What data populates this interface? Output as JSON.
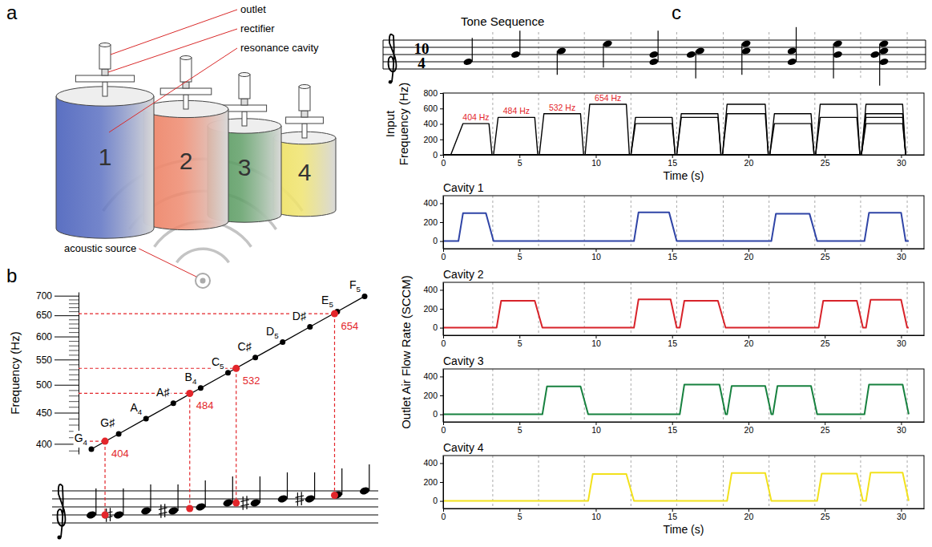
{
  "diagram": {
    "panel_label": "a",
    "labels": {
      "outlet": "outlet",
      "rectifier": "rectifier",
      "cavity": "resonance cavity",
      "source": "acoustic source"
    },
    "cavities": [
      {
        "label": "1",
        "color": "#5b70c2"
      },
      {
        "label": "2",
        "color": "#ee8a6f"
      },
      {
        "label": "3",
        "color": "#5f9e66"
      },
      {
        "label": "4",
        "color": "#efe36e"
      }
    ]
  },
  "tone_sequence": {
    "panel_label": "c",
    "title": "Tone Sequence",
    "time_signature": [
      "10",
      "4"
    ],
    "chords": [
      [
        "G4"
      ],
      [
        "B4"
      ],
      [
        "C5"
      ],
      [
        "E5"
      ],
      [
        "G4",
        "B4"
      ],
      [
        "B4",
        "C5"
      ],
      [
        "C5",
        "E5"
      ],
      [
        "G4",
        "C5"
      ],
      [
        "B4",
        "E5"
      ],
      [
        "G4",
        "B4",
        "C5",
        "E5"
      ]
    ],
    "boundaries": [
      3.25,
      6.25,
      9.25,
      12.3,
      15.3,
      18.35,
      21.35,
      24.35,
      27.35,
      30.4
    ],
    "flow_ylabel": "Outlet Air Flow Rate (SCCM)"
  },
  "chart_data": [
    {
      "type": "line",
      "panel_label": "b",
      "ylabel": "Frequency (Hz)",
      "log": "y",
      "tick_labels": "y",
      "xlim": [
        0,
        10
      ],
      "ylim": [
        385,
        710
      ],
      "yticks": [
        400,
        450,
        500,
        550,
        600,
        650,
        700
      ],
      "minor_yticks": [
        390,
        410,
        420,
        430,
        440,
        460,
        470,
        480,
        490,
        510,
        520,
        530,
        540,
        560,
        570,
        580,
        590,
        610,
        620,
        630,
        640,
        660,
        670,
        680,
        690
      ],
      "series": [
        {
          "color": "#000000",
          "marker": "circle",
          "x": [
            0,
            1,
            2,
            3,
            4,
            5,
            6,
            7,
            8,
            9,
            10
          ],
          "values": [
            392,
            415.3,
            440,
            466.2,
            493.9,
            523.3,
            554.4,
            587.3,
            622.3,
            659.3,
            698.5
          ],
          "point_labels": [
            "G4",
            "G♯",
            "A4",
            "A♯",
            "B4",
            "C5",
            "C♯",
            "D5",
            "D♯",
            "E5",
            "F5"
          ]
        },
        {
          "type": "scatter",
          "color": "#e3262b",
          "marker": "circle",
          "line_style": "dashed",
          "data_labels": true,
          "x": [
            0.5,
            3.6,
            5.3,
            8.9
          ],
          "values": [
            404,
            484,
            532,
            654
          ]
        }
      ]
    },
    {
      "type": "line",
      "xlabel": "Time (s)",
      "ylabel": "Input Frequency (Hz)",
      "xlim": [
        0,
        31.5
      ],
      "xticks": [
        0,
        5,
        10,
        15,
        20,
        25,
        30
      ],
      "ylim": [
        0,
        800
      ],
      "yticks": [
        0,
        200,
        400,
        600,
        800
      ],
      "series": [
        {
          "color": "#000000",
          "annotation": "404 Hz",
          "x": [
            0,
            0.5,
            1.3,
            3.0,
            3.2,
            12.3,
            12.6,
            15.0,
            15.2,
            21.4,
            21.7,
            24.1,
            24.3,
            27.4,
            27.7,
            30.1,
            30.3
          ],
          "values": [
            0,
            0,
            404,
            404,
            0,
            0,
            404,
            404,
            0,
            0,
            404,
            404,
            0,
            0,
            404,
            404,
            0
          ]
        },
        {
          "color": "#000000",
          "annotation": "484 Hz",
          "x": [
            0,
            3.3,
            3.6,
            6.0,
            6.2,
            12.3,
            12.6,
            15.0,
            15.2,
            15.3,
            15.6,
            18.0,
            18.2,
            24.4,
            24.7,
            27.1,
            27.3,
            27.4,
            27.7,
            30.1,
            30.3
          ],
          "values": [
            0,
            0,
            484,
            484,
            0,
            0,
            484,
            484,
            0,
            0,
            484,
            484,
            0,
            0,
            484,
            484,
            0,
            0,
            484,
            484,
            0
          ]
        },
        {
          "color": "#000000",
          "annotation": "532 Hz",
          "x": [
            0,
            6.3,
            6.6,
            9.0,
            9.2,
            15.3,
            15.6,
            18.0,
            18.2,
            18.3,
            18.6,
            21.1,
            21.3,
            21.4,
            21.7,
            24.1,
            24.3,
            27.4,
            27.7,
            30.1,
            30.3
          ],
          "values": [
            0,
            0,
            532,
            532,
            0,
            0,
            532,
            532,
            0,
            0,
            532,
            532,
            0,
            0,
            532,
            532,
            0,
            0,
            532,
            532,
            0
          ]
        },
        {
          "color": "#000000",
          "annotation": "654 Hz",
          "x": [
            0,
            9.3,
            9.6,
            12.0,
            12.2,
            18.3,
            18.6,
            21.1,
            21.3,
            24.4,
            24.7,
            27.1,
            27.3,
            27.4,
            27.7,
            30.1,
            30.3
          ],
          "values": [
            0,
            0,
            654,
            654,
            0,
            0,
            654,
            654,
            0,
            0,
            654,
            654,
            0,
            0,
            654,
            654,
            0
          ]
        }
      ]
    },
    {
      "type": "line",
      "title": "Cavity 1",
      "xlim": [
        0,
        31.5
      ],
      "xticks": [
        0,
        5,
        10,
        15,
        20,
        25,
        30
      ],
      "ylim": [
        -80,
        480
      ],
      "yticks": [
        0,
        200,
        400
      ],
      "series": [
        {
          "color": "#2f44a6",
          "x": [
            0,
            1.0,
            1.3,
            2.8,
            3.3,
            12.5,
            12.8,
            14.8,
            15.3,
            21.5,
            21.8,
            24.0,
            24.5,
            27.6,
            27.9,
            30.0,
            30.3,
            30.5
          ],
          "values": [
            0,
            0,
            295,
            295,
            0,
            0,
            305,
            305,
            0,
            0,
            290,
            290,
            0,
            0,
            300,
            300,
            0,
            0
          ]
        }
      ]
    },
    {
      "type": "line",
      "title": "Cavity 2",
      "xlim": [
        0,
        31.5
      ],
      "xticks": [
        0,
        5,
        10,
        15,
        20,
        25,
        30
      ],
      "ylim": [
        -80,
        480
      ],
      "yticks": [
        0,
        200,
        400
      ],
      "series": [
        {
          "color": "#d8232a",
          "x": [
            0,
            3.5,
            3.8,
            6.0,
            6.5,
            12.5,
            12.8,
            14.9,
            15.3,
            15.5,
            15.8,
            18.0,
            18.5,
            24.6,
            24.9,
            27.1,
            27.5,
            27.7,
            28.0,
            30.0,
            30.4,
            30.5
          ],
          "values": [
            0,
            0,
            285,
            285,
            0,
            0,
            300,
            300,
            0,
            0,
            285,
            285,
            0,
            0,
            285,
            285,
            0,
            0,
            295,
            295,
            0,
            0
          ]
        }
      ]
    },
    {
      "type": "line",
      "title": "Cavity 3",
      "xlim": [
        0,
        31.5
      ],
      "xticks": [
        0,
        5,
        10,
        15,
        20,
        25,
        30
      ],
      "ylim": [
        -80,
        480
      ],
      "yticks": [
        0,
        200,
        400
      ],
      "series": [
        {
          "color": "#17813f",
          "x": [
            0,
            6.5,
            6.8,
            9.0,
            9.5,
            15.5,
            15.8,
            18.1,
            18.5,
            18.6,
            18.9,
            21.1,
            21.5,
            21.6,
            21.9,
            24.1,
            24.5,
            27.6,
            27.9,
            30.1,
            30.5
          ],
          "values": [
            0,
            0,
            295,
            295,
            0,
            0,
            315,
            315,
            0,
            0,
            300,
            300,
            0,
            0,
            300,
            300,
            0,
            0,
            315,
            315,
            0
          ]
        }
      ]
    },
    {
      "type": "line",
      "title": "Cavity 4",
      "xlabel": "Time (s)",
      "xlim": [
        0,
        31.5
      ],
      "xticks": [
        0,
        5,
        10,
        15,
        20,
        25,
        30
      ],
      "ylim": [
        -80,
        480
      ],
      "yticks": [
        0,
        200,
        400
      ],
      "series": [
        {
          "color": "#f2e11c",
          "x": [
            0,
            9.5,
            9.8,
            12.0,
            12.5,
            18.6,
            18.9,
            21.1,
            21.5,
            24.5,
            24.8,
            27.1,
            27.5,
            27.7,
            28.0,
            30.1,
            30.5
          ],
          "values": [
            0,
            0,
            285,
            285,
            0,
            0,
            295,
            295,
            0,
            0,
            290,
            290,
            0,
            0,
            300,
            300,
            0
          ]
        }
      ]
    }
  ]
}
